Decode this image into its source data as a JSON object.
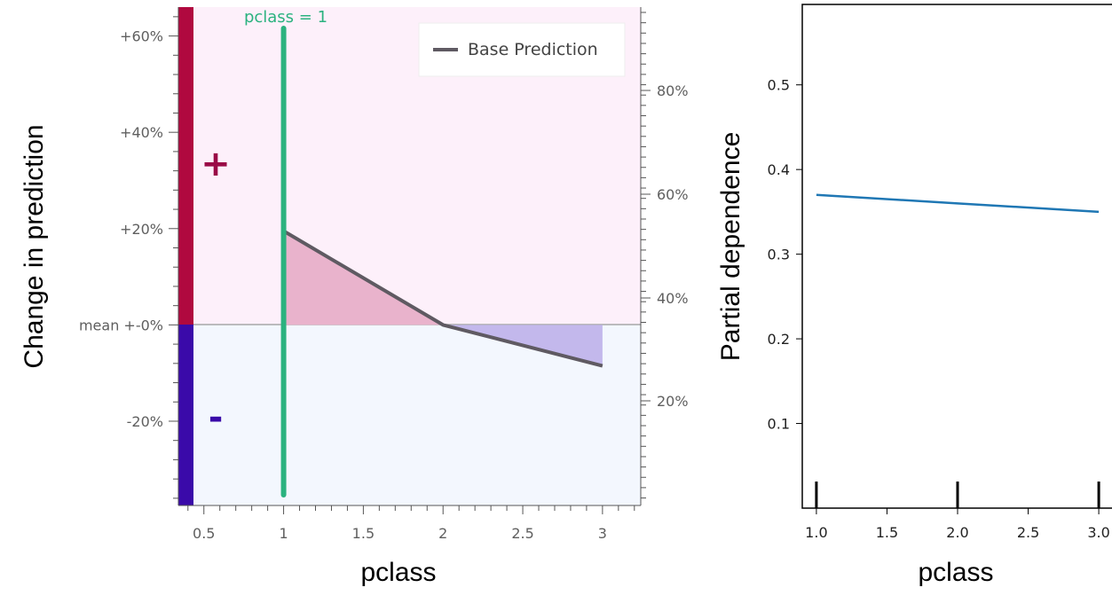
{
  "chart_data": [
    {
      "type": "line",
      "xlabel": "pclass",
      "ylabel": "Change in prediction",
      "x_ticks": [
        "0.5",
        "1",
        "1.5",
        "2",
        "2.5",
        "3"
      ],
      "xlim": [
        0.34,
        3.24
      ],
      "y_ticks": [
        "+60%",
        "+40%",
        "+20%",
        "mean +-0%",
        "-20%"
      ],
      "ylim": [
        -37.5,
        66
      ],
      "y2_ticks": [
        "80%",
        "60%",
        "40%",
        "20%"
      ],
      "series": [
        {
          "name": "Base Prediction",
          "x": [
            1,
            2,
            3
          ],
          "y": [
            19.5,
            0,
            -8.5
          ]
        }
      ],
      "legend": {
        "position": "top-right",
        "entries": [
          "Base Prediction"
        ]
      },
      "marker": {
        "label": "pclass = 1",
        "x": 1
      },
      "signs": {
        "positive": "+",
        "negative": "-"
      },
      "colors": {
        "line": "#5f5a62",
        "marker": "#2bb27f",
        "positive_fill": "#e9b3cc",
        "negative_fill": "#c3b8ec",
        "positive_bg": "#fdf0fa",
        "negative_bg": "#f3f7fe",
        "positive_bar": "#b0093f",
        "negative_bar": "#3a0aa9"
      }
    },
    {
      "type": "line",
      "xlabel": "pclass",
      "ylabel": "Partial dependence",
      "x_ticks": [
        "1.0",
        "1.5",
        "2.0",
        "2.5",
        "3.0"
      ],
      "y_ticks": [
        "0.5",
        "0.4",
        "0.3",
        "0.2",
        "0.1"
      ],
      "xlim": [
        0.9,
        3.1
      ],
      "ylim": [
        0.0,
        0.595
      ],
      "series": [
        {
          "x": [
            1.0,
            2.0,
            3.0
          ],
          "y": [
            0.37,
            0.36,
            0.35
          ]
        }
      ],
      "deciles": [
        1.0,
        2.0,
        3.0
      ],
      "colors": {
        "line": "#1f77b4"
      }
    }
  ]
}
